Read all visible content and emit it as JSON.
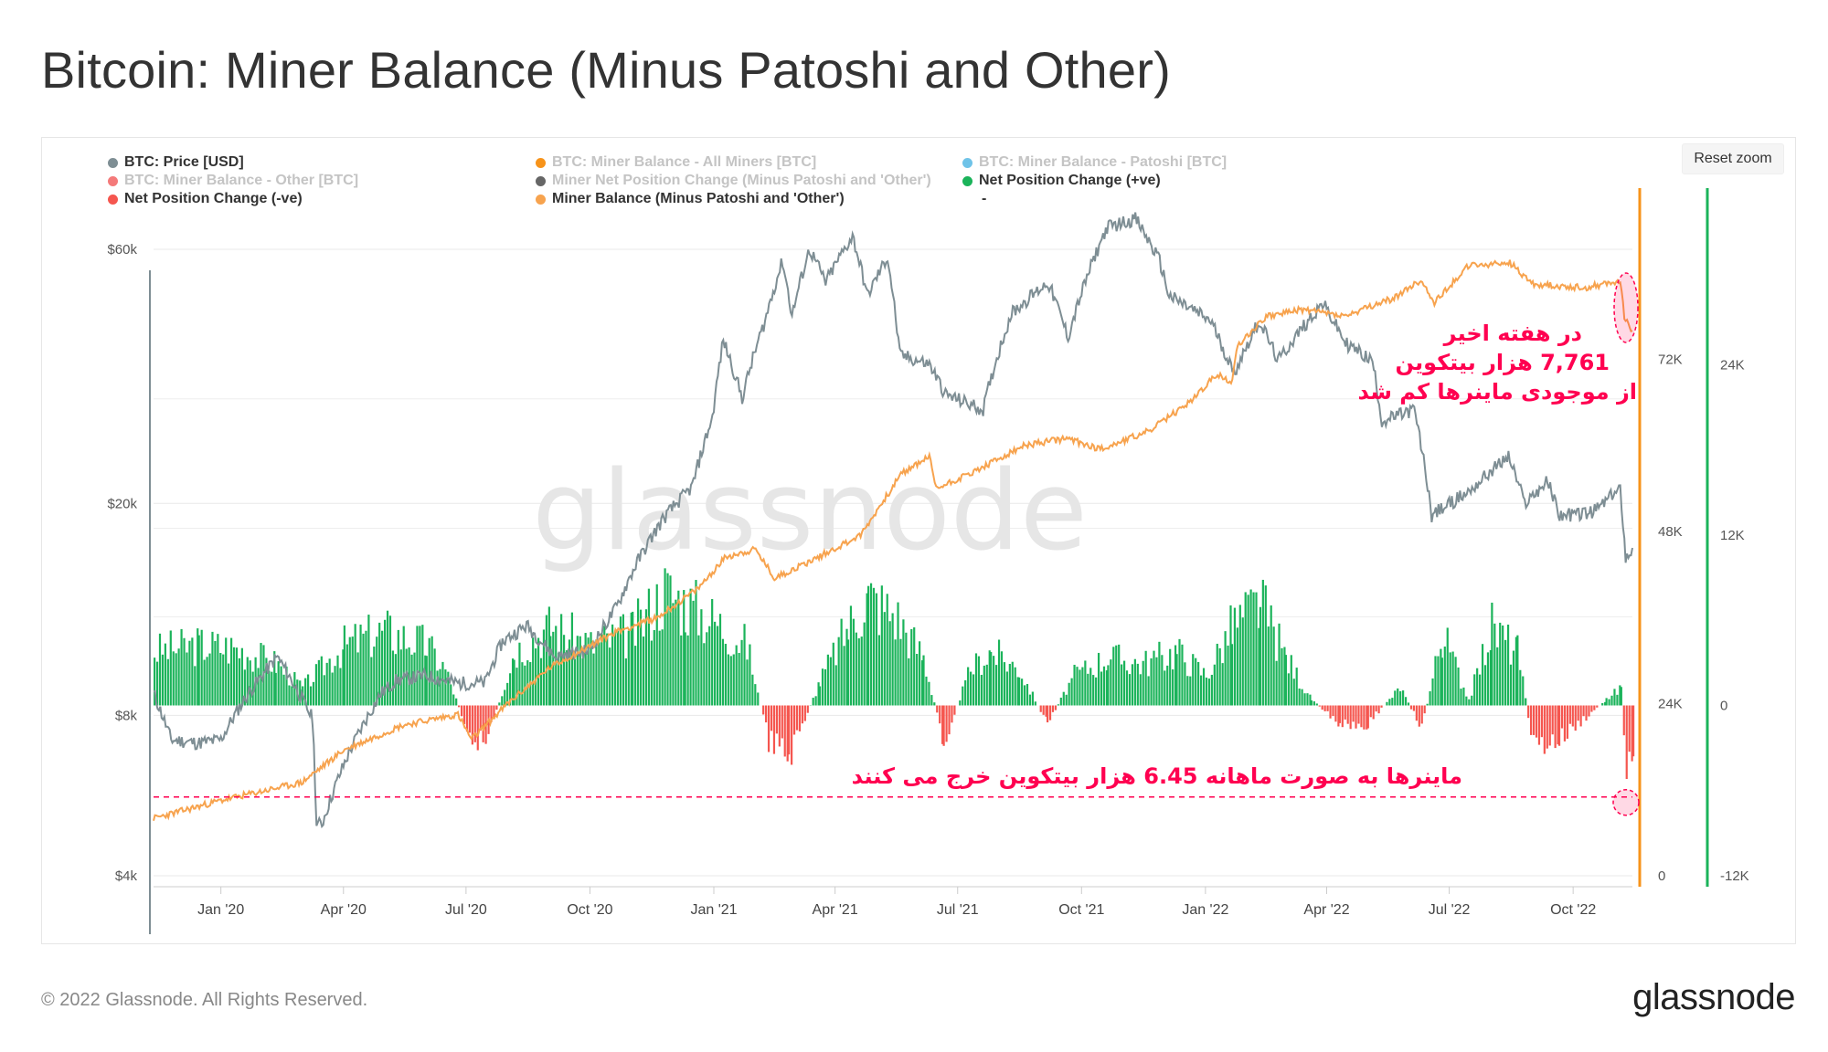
{
  "page": {
    "title": "Bitcoin: Miner Balance (Minus Patoshi and Other)",
    "reset_zoom": "Reset zoom",
    "copyright": "© 2022 Glassnode. All Rights Reserved.",
    "logo": "glassnode",
    "watermark": "glassnode"
  },
  "legend": [
    {
      "label": "BTC: Price [USD]",
      "color": "#7e8e94",
      "active": true
    },
    {
      "label": "BTC: Miner Balance - All Miners [BTC]",
      "color": "#f7931a",
      "active": false
    },
    {
      "label": "BTC: Miner Balance - Patoshi [BTC]",
      "color": "#6fc3e8",
      "active": false
    },
    {
      "label": "BTC: Miner Balance - Other [BTC]",
      "color": "#f47a7a",
      "active": false
    },
    {
      "label": "Miner Net Position Change (Minus Patoshi and 'Other')",
      "color": "#666666",
      "active": false
    },
    {
      "label": "Net Position Change (+ve)",
      "color": "#1bb35a",
      "active": true
    },
    {
      "label": "Net Position Change (-ve)",
      "color": "#f5564f",
      "active": true
    },
    {
      "label": "Miner Balance (Minus Patoshi and 'Other')",
      "color": "#f7a34e",
      "active": true
    },
    {
      "label": "-",
      "color": "",
      "active": true
    }
  ],
  "annotations": {
    "top_line1": "در هفته اخیر",
    "top_line2": "7,761 هزار بیتکوین",
    "top_line3": "از موجودی ماینرها کم شد",
    "bottom": "ماینرها  به صورت ماهانه 6.45 هزار بیتکوین خرج می کنند",
    "highlight_color": "#ff0050"
  },
  "chart_data": {
    "type": "line",
    "x_ticks": [
      "Jan '20",
      "Apr '20",
      "Jul '20",
      "Oct '20",
      "Jan '21",
      "Apr '21",
      "Jul '21",
      "Oct '21",
      "Jan '22",
      "Apr '22",
      "Jul '22",
      "Oct '22"
    ],
    "y_left": {
      "label": "",
      "scale": "log",
      "ticks": [
        "$4k",
        "$8k",
        "$20k",
        "$60k"
      ],
      "tick_values": [
        4000,
        8000,
        20000,
        60000
      ]
    },
    "y_right_balance": {
      "ticks": [
        "0",
        "24K",
        "48K",
        "72K"
      ],
      "tick_values": [
        0,
        24000,
        48000,
        72000
      ],
      "range": [
        0,
        95000
      ]
    },
    "y_right_change": {
      "ticks": [
        "-12K",
        "0",
        "12K",
        "24K"
      ],
      "tick_values": [
        -12000,
        0,
        12000,
        24000
      ],
      "range": [
        -12000,
        36000
      ]
    },
    "x_range": [
      "2019-11-12",
      "2022-11-14"
    ],
    "series": [
      {
        "name": "BTC: Price [USD]",
        "axis": "price",
        "color": "#7e8e94",
        "points": [
          [
            "2019-11-12",
            8800
          ],
          [
            "2019-11-25",
            7200
          ],
          [
            "2019-12-15",
            7100
          ],
          [
            "2020-01-01",
            7200
          ],
          [
            "2020-01-20",
            8700
          ],
          [
            "2020-02-12",
            10300
          ],
          [
            "2020-03-01",
            8600
          ],
          [
            "2020-03-09",
            7900
          ],
          [
            "2020-03-12",
            5000
          ],
          [
            "2020-03-16",
            5000
          ],
          [
            "2020-04-05",
            6800
          ],
          [
            "2020-04-29",
            8800
          ],
          [
            "2020-05-10",
            9300
          ],
          [
            "2020-06-01",
            9500
          ],
          [
            "2020-06-25",
            9200
          ],
          [
            "2020-07-15",
            9200
          ],
          [
            "2020-07-28",
            11000
          ],
          [
            "2020-08-15",
            11800
          ],
          [
            "2020-09-05",
            10300
          ],
          [
            "2020-10-01",
            10600
          ],
          [
            "2020-10-21",
            12800
          ],
          [
            "2020-11-05",
            15500
          ],
          [
            "2020-11-25",
            18800
          ],
          [
            "2020-12-16",
            21500
          ],
          [
            "2020-12-31",
            29000
          ],
          [
            "2021-01-08",
            40500
          ],
          [
            "2021-01-22",
            31500
          ],
          [
            "2021-02-08",
            44000
          ],
          [
            "2021-02-21",
            57000
          ],
          [
            "2021-02-28",
            45000
          ],
          [
            "2021-03-13",
            60000
          ],
          [
            "2021-03-25",
            52000
          ],
          [
            "2021-04-14",
            63500
          ],
          [
            "2021-04-25",
            49000
          ],
          [
            "2021-05-10",
            58000
          ],
          [
            "2021-05-19",
            38000
          ],
          [
            "2021-06-10",
            36500
          ],
          [
            "2021-06-22",
            32000
          ],
          [
            "2021-07-20",
            30000
          ],
          [
            "2021-08-10",
            45500
          ],
          [
            "2021-09-06",
            52000
          ],
          [
            "2021-09-21",
            41000
          ],
          [
            "2021-10-20",
            66000
          ],
          [
            "2021-11-10",
            68500
          ],
          [
            "2021-11-28",
            57000
          ],
          [
            "2021-12-05",
            49000
          ],
          [
            "2022-01-05",
            44000
          ],
          [
            "2022-01-22",
            35000
          ],
          [
            "2022-02-10",
            44000
          ],
          [
            "2022-02-24",
            37000
          ],
          [
            "2022-03-29",
            47500
          ],
          [
            "2022-04-15",
            40000
          ],
          [
            "2022-05-05",
            37000
          ],
          [
            "2022-05-12",
            28500
          ],
          [
            "2022-06-05",
            30000
          ],
          [
            "2022-06-18",
            19000
          ],
          [
            "2022-07-15",
            21000
          ],
          [
            "2022-08-14",
            24500
          ],
          [
            "2022-08-26",
            20000
          ],
          [
            "2022-09-12",
            22000
          ],
          [
            "2022-09-21",
            19000
          ],
          [
            "2022-10-15",
            19200
          ],
          [
            "2022-11-05",
            21300
          ],
          [
            "2022-11-09",
            15800
          ],
          [
            "2022-11-14",
            16500
          ]
        ]
      },
      {
        "name": "Miner Balance (Minus Patoshi and 'Other')",
        "axis": "balance",
        "color": "#f7a34e",
        "points": [
          [
            "2019-11-12",
            8000
          ],
          [
            "2020-01-01",
            10500
          ],
          [
            "2020-03-01",
            13000
          ],
          [
            "2020-04-01",
            17500
          ],
          [
            "2020-05-15",
            21000
          ],
          [
            "2020-06-25",
            22500
          ],
          [
            "2020-07-05",
            19000
          ],
          [
            "2020-08-01",
            24000
          ],
          [
            "2020-09-01",
            29000
          ],
          [
            "2020-10-20",
            34000
          ],
          [
            "2020-11-20",
            36000
          ],
          [
            "2020-12-20",
            40000
          ],
          [
            "2021-01-10",
            44500
          ],
          [
            "2021-02-01",
            45500
          ],
          [
            "2021-02-15",
            41500
          ],
          [
            "2021-03-15",
            44000
          ],
          [
            "2021-04-20",
            47500
          ],
          [
            "2021-05-20",
            56000
          ],
          [
            "2021-06-10",
            58500
          ],
          [
            "2021-06-15",
            54000
          ],
          [
            "2021-07-15",
            56500
          ],
          [
            "2021-08-20",
            60000
          ],
          [
            "2021-09-20",
            61000
          ],
          [
            "2021-10-15",
            59500
          ],
          [
            "2021-11-20",
            62000
          ],
          [
            "2021-12-20",
            66000
          ],
          [
            "2022-01-10",
            70000
          ],
          [
            "2022-01-20",
            68500
          ],
          [
            "2022-01-25",
            74000
          ],
          [
            "2022-02-15",
            78000
          ],
          [
            "2022-03-15",
            79000
          ],
          [
            "2022-04-15",
            78000
          ],
          [
            "2022-05-20",
            80500
          ],
          [
            "2022-06-10",
            83000
          ],
          [
            "2022-06-20",
            80000
          ],
          [
            "2022-07-15",
            85000
          ],
          [
            "2022-08-15",
            85500
          ],
          [
            "2022-09-01",
            82500
          ],
          [
            "2022-10-10",
            82000
          ],
          [
            "2022-11-05",
            83000
          ],
          [
            "2022-11-08",
            78000
          ],
          [
            "2022-11-14",
            76000
          ]
        ]
      },
      {
        "name": "Net Position Change",
        "axis": "change",
        "type": "bar",
        "positive_color": "#1bb35a",
        "negative_color": "#f5564f",
        "points": [
          [
            "2019-11-12",
            4500
          ],
          [
            "2019-12-15",
            5000
          ],
          [
            "2020-01-10",
            4800
          ],
          [
            "2020-02-10",
            3500
          ],
          [
            "2020-03-01",
            1500
          ],
          [
            "2020-04-01",
            5000
          ],
          [
            "2020-05-01",
            6200
          ],
          [
            "2020-06-01",
            5000
          ],
          [
            "2020-06-15",
            3000
          ],
          [
            "2020-07-01",
            -2000
          ],
          [
            "2020-07-15",
            -3500
          ],
          [
            "2020-08-05",
            4500
          ],
          [
            "2020-09-01",
            6500
          ],
          [
            "2020-10-01",
            5000
          ],
          [
            "2020-11-01",
            6000
          ],
          [
            "2020-11-25",
            9500
          ],
          [
            "2020-12-10",
            8500
          ],
          [
            "2021-01-01",
            7000
          ],
          [
            "2021-01-25",
            5000
          ],
          [
            "2021-02-10",
            -3000
          ],
          [
            "2021-02-25",
            -4500
          ],
          [
            "2021-03-20",
            2000
          ],
          [
            "2021-04-10",
            6500
          ],
          [
            "2021-04-25",
            9000
          ],
          [
            "2021-05-15",
            7500
          ],
          [
            "2021-06-05",
            4000
          ],
          [
            "2021-06-20",
            -3000
          ],
          [
            "2021-07-10",
            3000
          ],
          [
            "2021-07-25",
            4500
          ],
          [
            "2021-08-15",
            3000
          ],
          [
            "2021-09-05",
            -1500
          ],
          [
            "2021-09-25",
            2500
          ],
          [
            "2021-10-20",
            4000
          ],
          [
            "2021-11-15",
            3500
          ],
          [
            "2021-12-10",
            4500
          ],
          [
            "2022-01-01",
            2500
          ],
          [
            "2022-01-20",
            6500
          ],
          [
            "2022-02-10",
            8500
          ],
          [
            "2022-03-01",
            4000
          ],
          [
            "2022-03-20",
            500
          ],
          [
            "2022-04-10",
            -1500
          ],
          [
            "2022-05-01",
            -1500
          ],
          [
            "2022-05-25",
            1500
          ],
          [
            "2022-06-10",
            -2000
          ],
          [
            "2022-06-25",
            6000
          ],
          [
            "2022-07-15",
            500
          ],
          [
            "2022-08-01",
            6500
          ],
          [
            "2022-08-20",
            4500
          ],
          [
            "2022-09-01",
            -3500
          ],
          [
            "2022-09-20",
            -3000
          ],
          [
            "2022-10-10",
            -1000
          ],
          [
            "2022-10-25",
            500
          ],
          [
            "2022-11-05",
            1500
          ],
          [
            "2022-11-09",
            -6000
          ],
          [
            "2022-11-14",
            -5800
          ]
        ]
      }
    ],
    "reference_line": {
      "value": -6450,
      "axis": "change",
      "style": "dashed",
      "color": "#ff0050"
    }
  }
}
